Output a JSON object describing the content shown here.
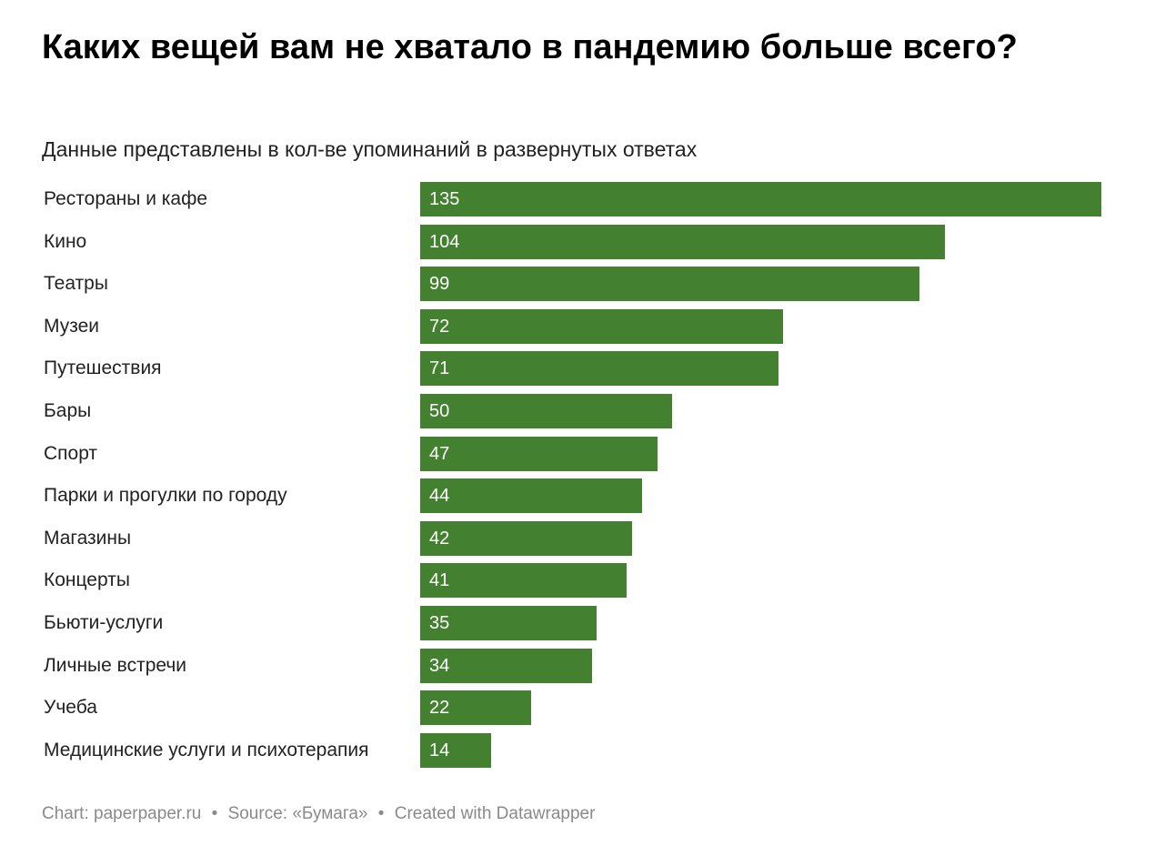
{
  "chart_data": {
    "type": "bar",
    "orientation": "horizontal",
    "title": "Каких вещей вам не хватало в пандемию больше всего?",
    "subtitle": "Данные представлены в кол-ве упоминаний в развернутых ответах",
    "categories": [
      "Рестораны и кафе",
      "Кино",
      "Театры",
      "Музеи",
      "Путешествия",
      "Бары",
      "Спорт",
      "Парки и прогулки по городу",
      "Магазины",
      "Концерты",
      "Бьюти-услуги",
      "Личные встречи",
      "Учеба",
      "Медицинские услуги и психотерапия"
    ],
    "values": [
      135,
      104,
      99,
      72,
      71,
      50,
      47,
      44,
      42,
      41,
      35,
      34,
      22,
      14
    ],
    "xlim": [
      0,
      135
    ],
    "grid": false,
    "data_labels": "inside-bar-start",
    "bar_color": "#43802f"
  },
  "footer": {
    "chart": "Chart: paperpaper.ru",
    "separator": "•",
    "source": "Source: «Бумага»",
    "created": "Created with Datawrapper"
  },
  "colors": {
    "bar": "#43802f",
    "label_text": "#222222",
    "value_text": "#ffffff",
    "footer_text": "#8a8a8a"
  }
}
